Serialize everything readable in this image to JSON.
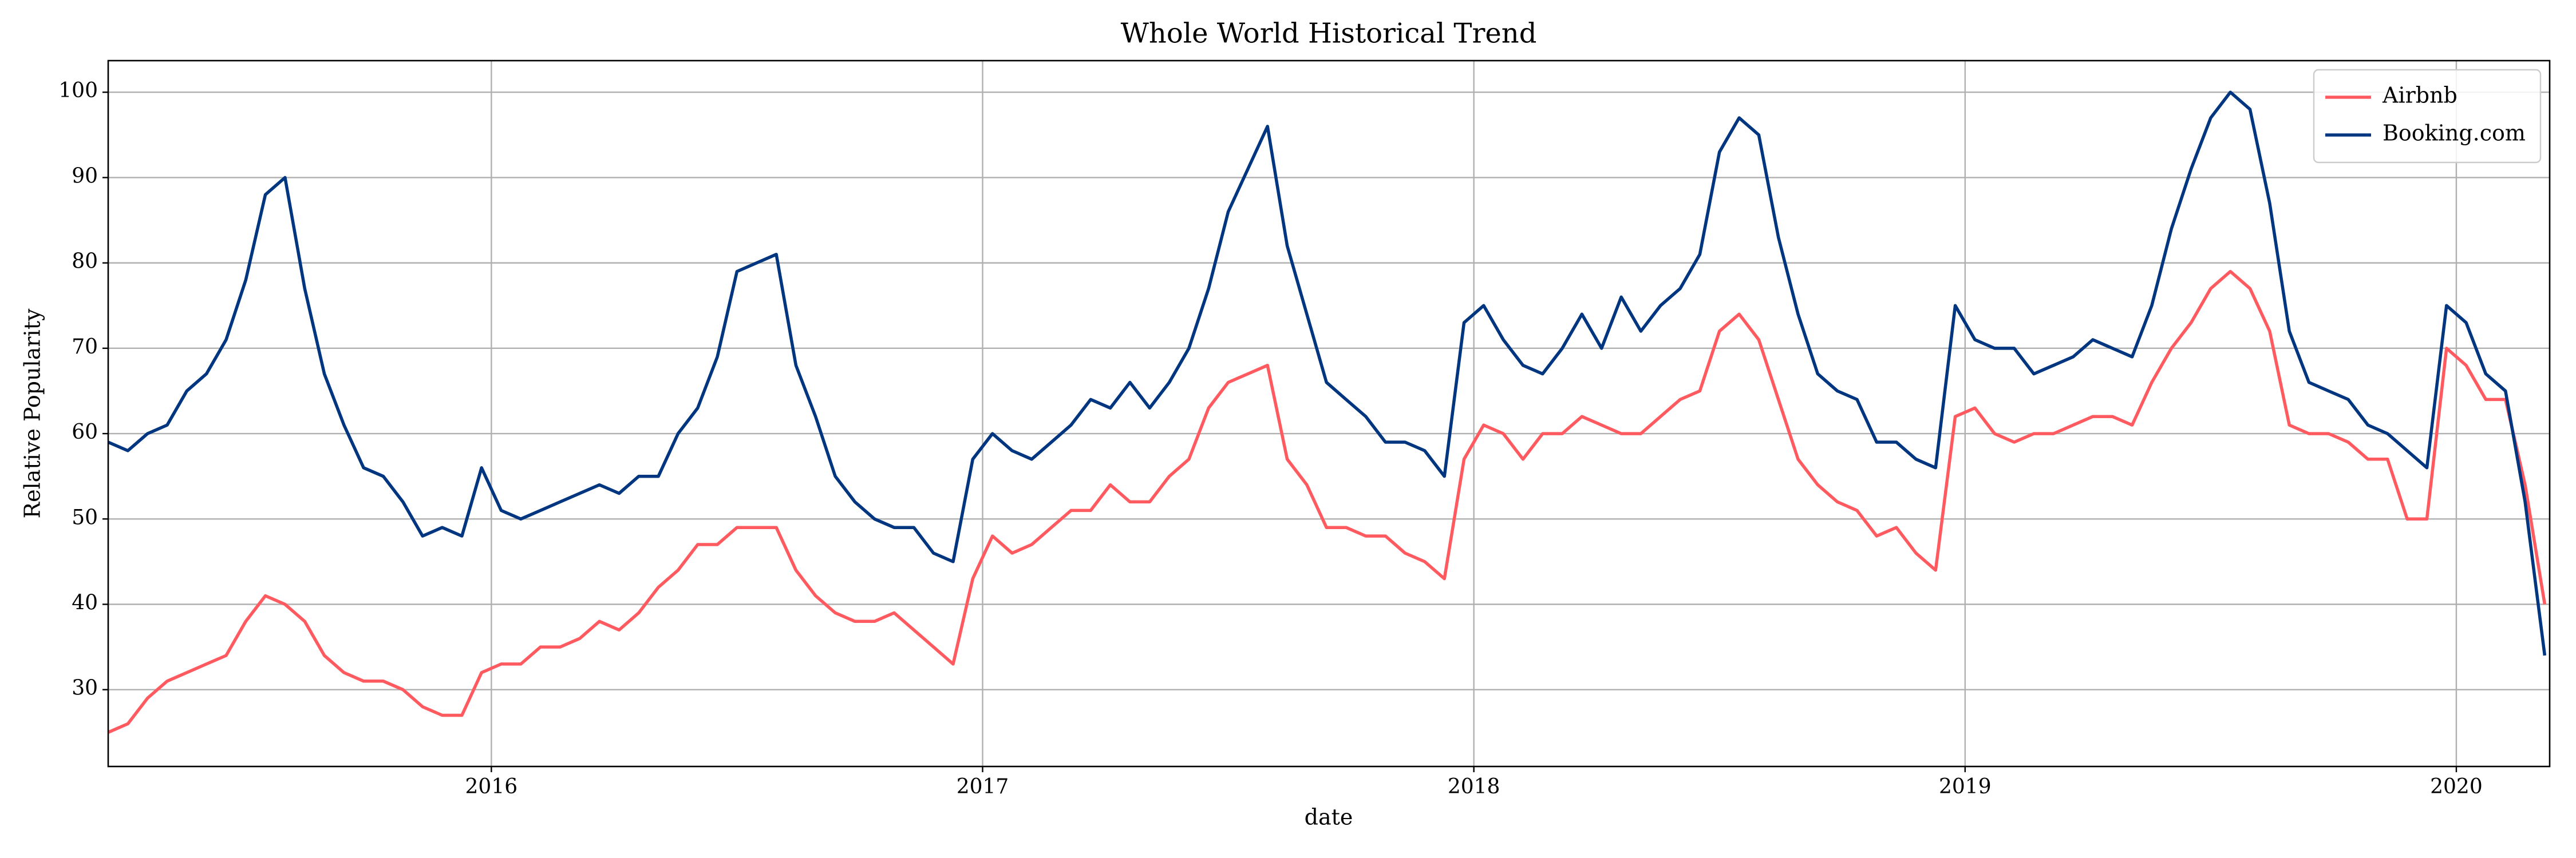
{
  "chart_data": {
    "type": "line",
    "title": "Whole World Historical Trend",
    "x_label": "date",
    "y_label": "Relative Popularity",
    "x": [
      2015.22,
      2015.26,
      2015.3,
      2015.34,
      2015.38,
      2015.42,
      2015.46,
      2015.5,
      2015.54,
      2015.58,
      2015.62,
      2015.66,
      2015.7,
      2015.74,
      2015.78,
      2015.82,
      2015.86,
      2015.9,
      2015.94,
      2015.98,
      2016.02,
      2016.06,
      2016.1,
      2016.14,
      2016.18,
      2016.22,
      2016.26,
      2016.3,
      2016.34,
      2016.38,
      2016.42,
      2016.46,
      2016.5,
      2016.54,
      2016.58,
      2016.62,
      2016.66,
      2016.7,
      2016.74,
      2016.78,
      2016.82,
      2016.86,
      2016.9,
      2016.94,
      2016.98,
      2017.02,
      2017.06,
      2017.1,
      2017.14,
      2017.18,
      2017.22,
      2017.26,
      2017.3,
      2017.34,
      2017.38,
      2017.42,
      2017.46,
      2017.5,
      2017.54,
      2017.58,
      2017.62,
      2017.66,
      2017.7,
      2017.74,
      2017.78,
      2017.82,
      2017.86,
      2017.9,
      2017.94,
      2017.98,
      2018.02,
      2018.06,
      2018.1,
      2018.14,
      2018.18,
      2018.22,
      2018.26,
      2018.3,
      2018.34,
      2018.38,
      2018.42,
      2018.46,
      2018.5,
      2018.54,
      2018.58,
      2018.62,
      2018.66,
      2018.7,
      2018.74,
      2018.78,
      2018.82,
      2018.86,
      2018.9,
      2018.94,
      2018.98,
      2019.02,
      2019.06,
      2019.1,
      2019.14,
      2019.18,
      2019.22,
      2019.26,
      2019.3,
      2019.34,
      2019.38,
      2019.42,
      2019.46,
      2019.5,
      2019.54,
      2019.58,
      2019.62,
      2019.66,
      2019.7,
      2019.74,
      2019.78,
      2019.82,
      2019.86,
      2019.9,
      2019.94,
      2019.98,
      2020.02,
      2020.06,
      2020.1,
      2020.14,
      2020.18
    ],
    "series": [
      {
        "name": "Airbnb",
        "color": "#ff5a5f",
        "values": [
          25,
          26,
          29,
          31,
          32,
          33,
          34,
          38,
          41,
          40,
          38,
          34,
          32,
          31,
          31,
          30,
          28,
          27,
          27,
          32,
          33,
          33,
          35,
          35,
          36,
          38,
          37,
          39,
          42,
          44,
          47,
          47,
          49,
          49,
          49,
          44,
          41,
          39,
          38,
          38,
          39,
          37,
          35,
          33,
          43,
          48,
          46,
          47,
          49,
          51,
          51,
          54,
          52,
          52,
          55,
          57,
          63,
          66,
          67,
          68,
          57,
          54,
          49,
          49,
          48,
          48,
          46,
          45,
          43,
          57,
          61,
          60,
          57,
          60,
          60,
          62,
          61,
          60,
          60,
          62,
          64,
          65,
          72,
          74,
          71,
          64,
          57,
          54,
          52,
          51,
          48,
          49,
          46,
          44,
          62,
          63,
          60,
          59,
          60,
          60,
          61,
          62,
          62,
          61,
          66,
          70,
          73,
          77,
          79,
          77,
          72,
          61,
          60,
          60,
          59,
          57,
          57,
          50,
          50,
          70,
          68,
          64,
          64,
          54,
          40
        ]
      },
      {
        "name": "Booking.com",
        "color": "#003580",
        "values": [
          59,
          58,
          60,
          61,
          65,
          67,
          71,
          78,
          88,
          90,
          77,
          67,
          61,
          56,
          55,
          52,
          48,
          49,
          48,
          56,
          51,
          50,
          51,
          52,
          53,
          54,
          53,
          55,
          55,
          60,
          63,
          69,
          79,
          80,
          81,
          68,
          62,
          55,
          52,
          50,
          49,
          49,
          46,
          45,
          57,
          60,
          58,
          57,
          59,
          61,
          64,
          63,
          66,
          63,
          66,
          70,
          77,
          86,
          91,
          96,
          82,
          74,
          66,
          64,
          62,
          59,
          59,
          58,
          55,
          73,
          75,
          71,
          68,
          67,
          70,
          74,
          70,
          76,
          72,
          75,
          77,
          81,
          93,
          97,
          95,
          83,
          74,
          67,
          65,
          64,
          59,
          59,
          57,
          56,
          75,
          71,
          70,
          70,
          67,
          68,
          69,
          71,
          70,
          69,
          75,
          84,
          91,
          97,
          100,
          98,
          87,
          72,
          66,
          65,
          64,
          61,
          60,
          58,
          56,
          75,
          73,
          67,
          65,
          52,
          34
        ]
      }
    ],
    "xlim": [
      2015.22,
      2020.19
    ],
    "xticks": [
      2016,
      2017,
      2018,
      2019,
      2020
    ],
    "ylim": [
      21,
      103.7
    ],
    "yticks": [
      30,
      40,
      50,
      60,
      70,
      80,
      90,
      100
    ],
    "grid": true,
    "legend": "upper right"
  }
}
